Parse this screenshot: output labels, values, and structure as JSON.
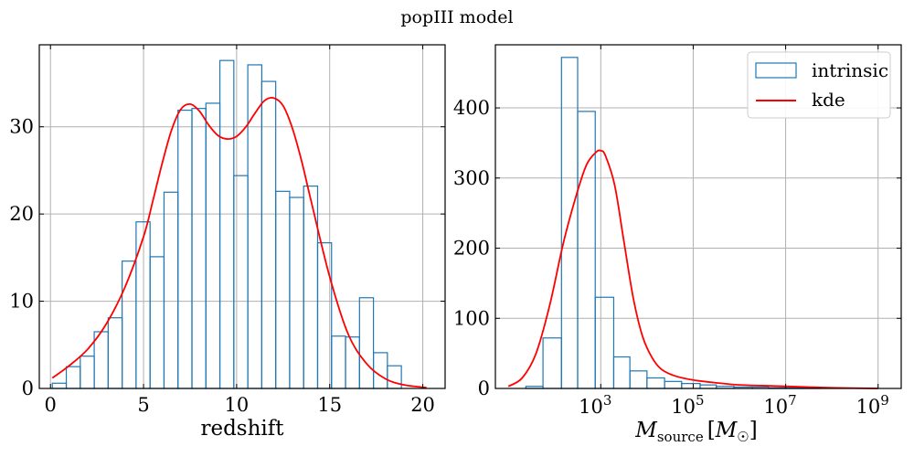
{
  "title": "popIII model",
  "chart_data": [
    {
      "type": "bar",
      "subtype": "histogram-with-kde",
      "xlabel": "redshift",
      "ylabel": "",
      "xlim": [
        -0.6,
        21.2
      ],
      "ylim": [
        0,
        39.4
      ],
      "xticks": [
        0,
        5,
        10,
        15,
        20
      ],
      "xtick_labels": [
        "0",
        "5",
        "10",
        "15",
        "20"
      ],
      "yticks": [
        0,
        10,
        20,
        30
      ],
      "ytick_labels": [
        "0",
        "10",
        "20",
        "30"
      ],
      "grid": true,
      "histogram": {
        "name": "intrinsic",
        "color": "#1f77b4",
        "bin_edges": [
          0.1,
          0.85,
          1.6,
          2.35,
          3.1,
          3.85,
          4.6,
          5.35,
          6.1,
          6.85,
          7.6,
          8.35,
          9.1,
          9.85,
          10.6,
          11.35,
          12.1,
          12.85,
          13.6,
          14.35,
          15.1,
          15.85,
          16.6,
          17.35,
          18.1,
          18.85,
          19.6
        ],
        "values": [
          0.6,
          2.5,
          3.7,
          6.5,
          8.1,
          14.6,
          19.1,
          15.1,
          22.5,
          31.9,
          32.1,
          32.7,
          37.6,
          24.4,
          37.1,
          35.2,
          22.6,
          21.9,
          23.2,
          16.7,
          6.0,
          5.9,
          10.4,
          4.1,
          2.6,
          0
        ]
      },
      "kde": {
        "name": "kde",
        "color": "#ff0000",
        "x": [
          0.1,
          1,
          2,
          3,
          4,
          5,
          5.5,
          6,
          6.5,
          7,
          7.5,
          8,
          8.5,
          9,
          9.5,
          10,
          10.5,
          11,
          11.5,
          12,
          12.5,
          13,
          13.5,
          14,
          15,
          16,
          17,
          18,
          19,
          20.2
        ],
        "y": [
          1.2,
          2.6,
          4.5,
          7.4,
          11.6,
          17.4,
          21.5,
          25.8,
          29.6,
          32.0,
          32.6,
          31.8,
          30.2,
          29.0,
          28.6,
          28.9,
          30.0,
          31.6,
          33.0,
          33.3,
          32.4,
          29.8,
          26.0,
          21.5,
          12.8,
          6.2,
          2.8,
          1.1,
          0.4,
          0.1
        ]
      },
      "legend": false
    },
    {
      "type": "bar",
      "subtype": "histogram-with-kde",
      "xscale": "log",
      "xlabel_main": "M",
      "xlabel_sub": "source",
      "xlabel_unit_open": "[",
      "xlabel_unit": "M",
      "xlabel_unit_sub": "☉",
      "xlabel_unit_close": "]",
      "ylabel": "",
      "xlim_log10": [
        0.72,
        9.5
      ],
      "ylim": [
        0,
        490
      ],
      "xticks_log10": [
        3,
        5,
        7,
        9
      ],
      "xtick_base": "10",
      "xtick_exponents": [
        "3",
        "5",
        "7",
        "9"
      ],
      "yticks": [
        0,
        100,
        200,
        300,
        400
      ],
      "ytick_labels": [
        "0",
        "100",
        "200",
        "300",
        "400"
      ],
      "grid": true,
      "histogram": {
        "name": "intrinsic",
        "color": "#1f77b4",
        "bin_edges_log10": [
          1.38,
          1.75,
          2.15,
          2.5,
          2.88,
          3.28,
          3.63,
          4.0,
          4.38,
          4.75,
          5.15,
          5.5,
          5.88,
          6.28,
          6.63,
          7.0,
          7.38,
          7.75,
          8.13,
          8.5,
          8.88,
          9.25
        ],
        "values": [
          3,
          72,
          472,
          395,
          130,
          45,
          25,
          15,
          10,
          7,
          5,
          3,
          2,
          2,
          1,
          1,
          1,
          0,
          0,
          0,
          0
        ]
      },
      "kde": {
        "name": "kde",
        "color": "#ff0000",
        "x_log10": [
          1.0,
          1.3,
          1.6,
          1.9,
          2.2,
          2.5,
          2.7,
          2.9,
          3.0,
          3.1,
          3.3,
          3.5,
          3.7,
          3.9,
          4.1,
          4.3,
          4.6,
          5.0,
          5.5,
          6.0,
          6.5,
          7.0,
          7.5,
          8.0,
          9.0
        ],
        "y": [
          3,
          15,
          50,
          120,
          210,
          282,
          320,
          337,
          339,
          332,
          290,
          210,
          130,
          75,
          45,
          28,
          18,
          12,
          8,
          5,
          4,
          3,
          2,
          1,
          0
        ]
      },
      "legend": true,
      "legend_position": "upper right",
      "legend_entries": [
        {
          "label": "intrinsic",
          "kind": "patch",
          "color": "#1f77b4"
        },
        {
          "label": "kde",
          "kind": "line",
          "color": "#ff0000"
        }
      ]
    }
  ]
}
